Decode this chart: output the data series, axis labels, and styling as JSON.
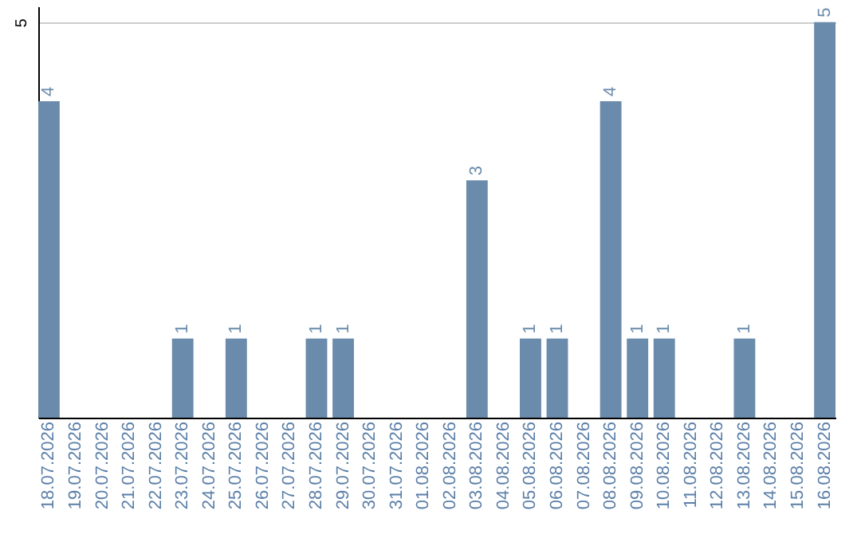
{
  "chart_data": {
    "type": "bar",
    "categories": [
      "18.07.2026",
      "19.07.2026",
      "20.07.2026",
      "21.07.2026",
      "22.07.2026",
      "23.07.2026",
      "24.07.2026",
      "25.07.2026",
      "26.07.2026",
      "27.07.2026",
      "28.07.2026",
      "29.07.2026",
      "30.07.2026",
      "31.07.2026",
      "01.08.2026",
      "02.08.2026",
      "03.08.2026",
      "04.08.2026",
      "05.08.2026",
      "06.08.2026",
      "07.08.2026",
      "08.08.2026",
      "09.08.2026",
      "10.08.2026",
      "11.08.2026",
      "12.08.2026",
      "13.08.2026",
      "14.08.2026",
      "15.08.2026",
      "16.08.2026"
    ],
    "values": [
      4,
      0,
      0,
      0,
      0,
      1,
      0,
      1,
      0,
      0,
      1,
      1,
      0,
      0,
      0,
      0,
      3,
      0,
      1,
      1,
      0,
      4,
      1,
      1,
      0,
      0,
      1,
      0,
      0,
      5
    ],
    "value_labels": [
      "4",
      null,
      null,
      null,
      null,
      "1",
      null,
      "1",
      null,
      null,
      "1",
      "1",
      null,
      null,
      null,
      null,
      "3",
      null,
      "1",
      "1",
      null,
      "4",
      "1",
      "1",
      null,
      null,
      "1",
      null,
      null,
      "5"
    ],
    "color": "#6a8bab",
    "ylim": [
      0,
      5.2
    ],
    "yticks": [
      5
    ],
    "grid": "y"
  }
}
